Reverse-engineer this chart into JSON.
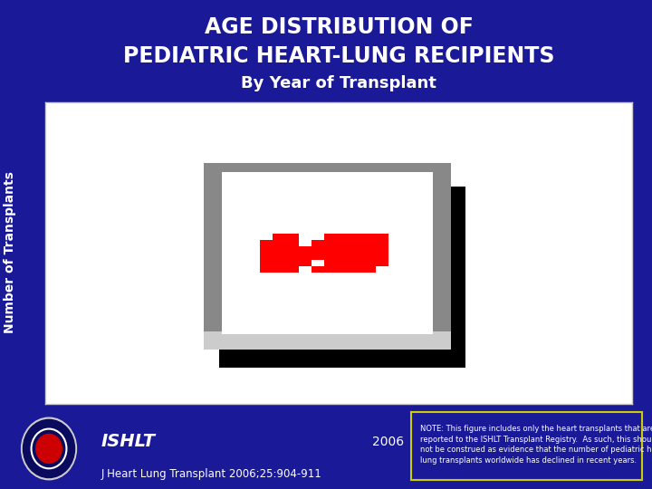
{
  "title_line1": "AGE DISTRIBUTION OF",
  "title_line2": "PEDIATRIC HEART-LUNG RECIPIENTS",
  "title_line3": "By Year of Transplant",
  "ylabel": "Number of Transplants",
  "bg_color": "#1a1a99",
  "plot_area_color": "#ffffff",
  "title_color": "#ffffff",
  "ylabel_color": "#ffffff",
  "ishlt_text": "ISHLT",
  "year_text": "2006",
  "journal_text": "J Heart Lung Transplant 2006;25:904-911",
  "note_text": "NOTE: This figure includes only the heart transplants that are\nreported to the ISHLT Transplant Registry.  As such, this should\nnot be construed as evidence that the number of pediatric heart-\nlung transplants worldwide has declined in recent years.",
  "note_border_color": "#cccc00",
  "note_text_color": "#ffffff",
  "broken_image_color": "#ff0000",
  "gray_border": "#888888",
  "black_shadow": "#000000",
  "light_gray": "#cccccc"
}
